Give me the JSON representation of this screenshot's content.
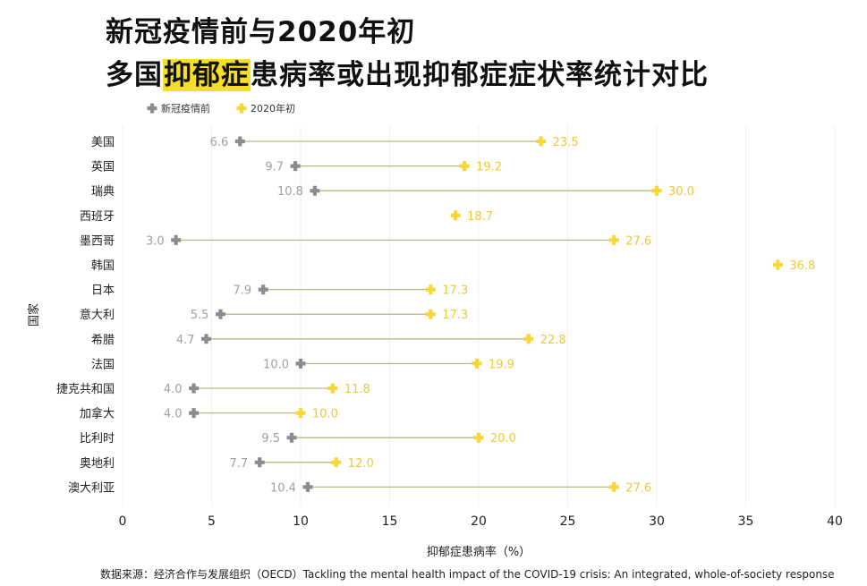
{
  "title": {
    "line1": "新冠疫情前与2020年初",
    "line2_prefix": "多国",
    "line2_highlight": "抑郁症",
    "line2_suffix": "患病率或出现抑郁症症状率统计对比"
  },
  "source": "数据来源：经济合作与发展组织（OECD）Tackling the mental health impact of the COVID-19 crisis: An integrated, whole-of-society response",
  "colors": {
    "before": "#8c8c8c",
    "after": "#f5d735",
    "connector": "#b9b88a",
    "before_label": "#a0a0a0",
    "after_label": "#ecc93a"
  },
  "chart_data": {
    "type": "dumbbell",
    "xlabel": "抑郁症患病率（%）",
    "ylabel": "国家",
    "xlim": [
      0,
      40
    ],
    "xticks": [
      0,
      5,
      10,
      15,
      20,
      25,
      30,
      35,
      40
    ],
    "legend": [
      "新冠疫情前",
      "2020年初"
    ],
    "series": [
      {
        "country": "美国",
        "before": 6.6,
        "after": 23.5
      },
      {
        "country": "英国",
        "before": 9.7,
        "after": 19.2
      },
      {
        "country": "瑞典",
        "before": 10.8,
        "after": 30.0
      },
      {
        "country": "西班牙",
        "before": null,
        "after": 18.7
      },
      {
        "country": "墨西哥",
        "before": 3.0,
        "after": 27.6
      },
      {
        "country": "韩国",
        "before": null,
        "after": 36.8
      },
      {
        "country": "日本",
        "before": 7.9,
        "after": 17.3
      },
      {
        "country": "意大利",
        "before": 5.5,
        "after": 17.3
      },
      {
        "country": "希腊",
        "before": 4.7,
        "after": 22.8
      },
      {
        "country": "法国",
        "before": 10.0,
        "after": 19.9
      },
      {
        "country": "捷克共和国",
        "before": 4.0,
        "after": 11.8
      },
      {
        "country": "加拿大",
        "before": 4.0,
        "after": 10.0
      },
      {
        "country": "比利时",
        "before": 9.5,
        "after": 20.0
      },
      {
        "country": "奥地利",
        "before": 7.7,
        "after": 12.0
      },
      {
        "country": "澳大利亚",
        "before": 10.4,
        "after": 27.6
      }
    ]
  }
}
